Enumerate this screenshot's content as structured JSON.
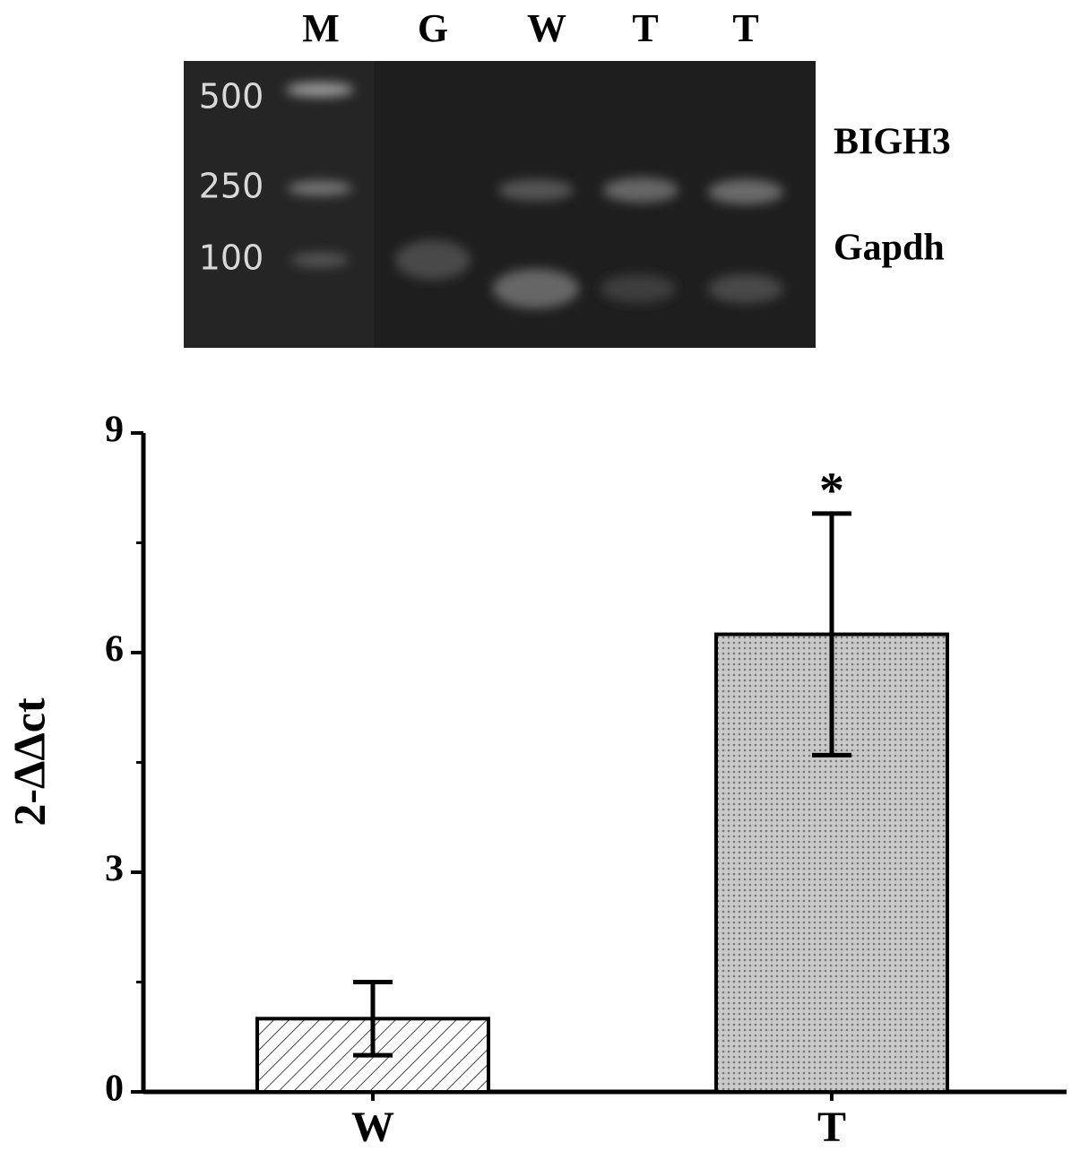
{
  "gel": {
    "lanes": [
      "M",
      "G",
      "W",
      "T",
      "T"
    ],
    "marker_sizes": [
      "500",
      "250",
      "100"
    ],
    "bands": [
      "BIGH3",
      "Gapdh"
    ]
  },
  "chart_data": {
    "type": "bar",
    "y_label": "2-ΔΔct",
    "categories": [
      "W",
      "T"
    ],
    "values": [
      1.0,
      6.25
    ],
    "errors": [
      0.5,
      1.65
    ],
    "colors": [
      "#ffffff",
      "#c9c9c9"
    ],
    "annotation": "*",
    "ylim": [
      0,
      9
    ],
    "yticks": [
      0,
      3,
      6,
      9
    ],
    "yminorticks": [
      1.5,
      4.5,
      7.5
    ]
  }
}
